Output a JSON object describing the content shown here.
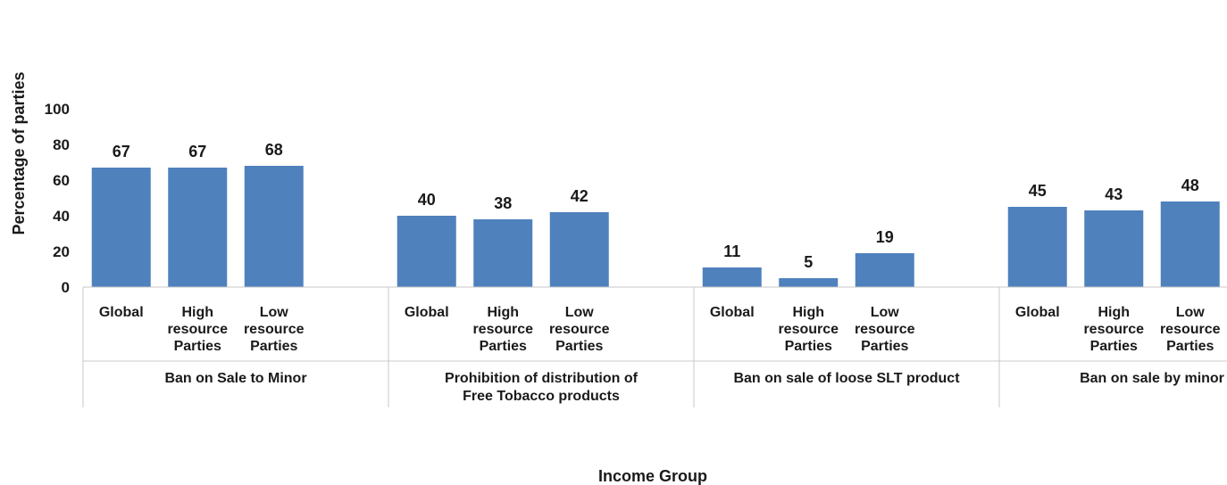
{
  "chart_data": {
    "type": "bar",
    "title": "",
    "xlabel": "Income Group",
    "ylabel": "Percentage of parties",
    "ylim": [
      0,
      100
    ],
    "yticks": [
      0,
      20,
      40,
      60,
      80,
      100
    ],
    "grid": false,
    "legend": "none",
    "bar_color": "#4f81bd",
    "groups": [
      {
        "label": "Ban on Sale to Minor",
        "categories": [
          "Global",
          "High resource Parties",
          "Low resource Parties"
        ],
        "values": [
          67,
          67,
          68
        ]
      },
      {
        "label": "Prohibition of distribution of Free Tobacco products",
        "categories": [
          "Global",
          "High resource Parties",
          "Low resource Parties"
        ],
        "values": [
          40,
          38,
          42
        ]
      },
      {
        "label": "Ban on sale of loose SLT product",
        "categories": [
          "Global",
          "High resource Parties",
          "Low resource Parties"
        ],
        "values": [
          11,
          5,
          19
        ]
      },
      {
        "label": "Ban on sale by minor",
        "categories": [
          "Global",
          "High resource Parties",
          "Low resource Parties"
        ],
        "values": [
          45,
          43,
          48
        ]
      }
    ]
  }
}
